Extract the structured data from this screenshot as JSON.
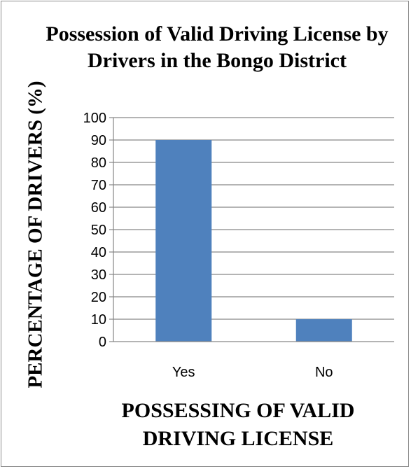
{
  "chart_data": {
    "type": "bar",
    "title": "Possession of Valid Driving License by Drivers in the Bongo District",
    "xlabel": "POSSESSING OF VALID DRIVING LICENSE",
    "ylabel": "PERCENTAGE OF DRIVERS (%)",
    "categories": [
      "Yes",
      "No"
    ],
    "values": [
      90,
      10
    ],
    "ylim": [
      0,
      100
    ],
    "yticks": [
      0,
      10,
      20,
      30,
      40,
      50,
      60,
      70,
      80,
      90,
      100
    ],
    "grid": true,
    "legend": "none",
    "bar_color": "#4f81bd",
    "grid_color": "#868686"
  }
}
